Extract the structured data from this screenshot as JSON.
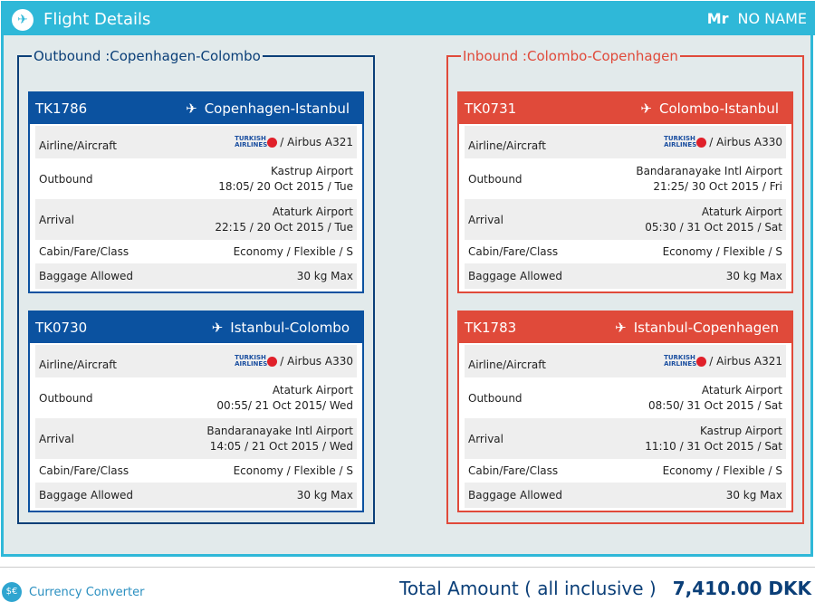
{
  "header": {
    "title": "Flight Details",
    "salutation": "Mr",
    "passenger": "NO NAME",
    "icon": "plane-departure-icon"
  },
  "colors": {
    "header": "#2fb8d8",
    "outbound": "#0b52a0",
    "inbound": "#e04a3a"
  },
  "labels": {
    "airline": "Airline/Aircraft",
    "outbound": "Outbound",
    "arrival": "Arrival",
    "cabin": "Cabin/Fare/Class",
    "baggage": "Baggage Allowed",
    "airline_logo": "TURKISH AIRLINES"
  },
  "sections": [
    {
      "legend": "Outbound :Copenhagen-Colombo",
      "flights": [
        {
          "code": "TK1786",
          "route": "Copenhagen-Istanbul",
          "aircraft": "/ Airbus A321",
          "dep_airport": "Kastrup Airport",
          "dep_time": "18:05/ 20 Oct 2015 / Tue",
          "arr_airport": "Ataturk Airport",
          "arr_time": "22:15 / 20 Oct 2015 / Tue",
          "cabin": "Economy / Flexible / S",
          "baggage": "30 kg Max"
        },
        {
          "code": "TK0730",
          "route": "Istanbul-Colombo",
          "aircraft": "/ Airbus A330",
          "dep_airport": "Ataturk Airport",
          "dep_time": "00:55/ 21 Oct 2015/ Wed",
          "arr_airport": "Bandaranayake Intl Airport",
          "arr_time": "14:05 / 21 Oct 2015 / Wed",
          "cabin": "Economy / Flexible / S",
          "baggage": "30 kg Max"
        }
      ]
    },
    {
      "legend": "Inbound :Colombo-Copenhagen",
      "flights": [
        {
          "code": "TK0731",
          "route": "Colombo-Istanbul",
          "aircraft": "/ Airbus A330",
          "dep_airport": "Bandaranayake Intl Airport",
          "dep_time": "21:25/ 30 Oct 2015 / Fri",
          "arr_airport": "Ataturk Airport",
          "arr_time": "05:30 / 31 Oct 2015 / Sat",
          "cabin": "Economy / Flexible / S",
          "baggage": "30 kg Max"
        },
        {
          "code": "TK1783",
          "route": "Istanbul-Copenhagen",
          "aircraft": "/ Airbus A321",
          "dep_airport": "Ataturk Airport",
          "dep_time": "08:50/ 31 Oct 2015 / Sat",
          "arr_airport": "Kastrup Airport",
          "arr_time": "11:10 / 31 Oct 2015 / Sat",
          "cabin": "Economy / Flexible / S",
          "baggage": "30 kg Max"
        }
      ]
    }
  ],
  "footer": {
    "currency_converter": "Currency Converter",
    "total_label": "Total Amount ( all inclusive )",
    "total_value": "7,410.00 DKK"
  }
}
